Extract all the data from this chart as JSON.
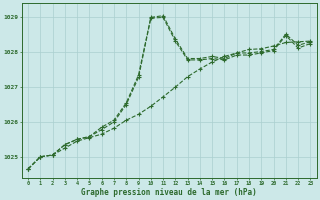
{
  "x": [
    0,
    1,
    2,
    3,
    4,
    5,
    6,
    7,
    8,
    9,
    10,
    11,
    12,
    13,
    14,
    15,
    16,
    17,
    18,
    19,
    20,
    21,
    22,
    23
  ],
  "line1": [
    1024.65,
    1025.0,
    1025.05,
    1025.25,
    1025.45,
    1025.55,
    1025.65,
    1025.82,
    1026.05,
    1026.22,
    1026.45,
    1026.72,
    1027.0,
    1027.3,
    1027.52,
    1027.72,
    1027.88,
    1027.98,
    1028.08,
    1028.1,
    1028.18,
    1028.28,
    1028.3,
    1028.32
  ],
  "line2": [
    1024.65,
    1025.0,
    1025.05,
    1025.35,
    1025.5,
    1025.58,
    1025.85,
    1026.05,
    1026.55,
    1027.35,
    1029.0,
    1029.05,
    1028.38,
    1027.82,
    1027.82,
    1027.88,
    1027.82,
    1027.98,
    1027.98,
    1028.02,
    1028.08,
    1028.52,
    1028.2,
    1028.3
  ],
  "line3": [
    1024.65,
    1025.0,
    1025.05,
    1025.35,
    1025.5,
    1025.58,
    1025.78,
    1026.0,
    1026.5,
    1027.28,
    1028.98,
    1029.0,
    1028.32,
    1027.78,
    1027.78,
    1027.82,
    1027.78,
    1027.92,
    1027.92,
    1027.98,
    1028.05,
    1028.48,
    1028.12,
    1028.25
  ],
  "line_color": "#2d6a2d",
  "bg_color": "#cce8e8",
  "grid_color": "#aacfcf",
  "xlabel": "Graphe pression niveau de la mer (hPa)",
  "ylim": [
    1024.4,
    1029.4
  ],
  "xlim": [
    -0.5,
    23.5
  ]
}
